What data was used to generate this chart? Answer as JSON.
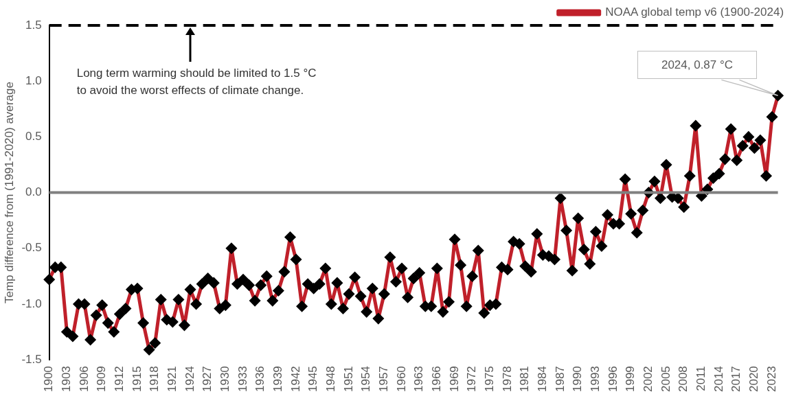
{
  "chart_data": {
    "type": "line",
    "ylabel": "Temp difference from (1991-2020) average",
    "categories": [
      "1900",
      null,
      null,
      "1903",
      null,
      null,
      "1906",
      null,
      null,
      "1909",
      null,
      null,
      "1912",
      null,
      null,
      "1915",
      null,
      null,
      "1918",
      null,
      null,
      "1921",
      null,
      null,
      "1924",
      null,
      null,
      "1927",
      null,
      null,
      "1930",
      null,
      null,
      "1933",
      null,
      null,
      "1936",
      null,
      null,
      "1939",
      null,
      null,
      "1942",
      null,
      null,
      "1945",
      null,
      null,
      "1948",
      null,
      null,
      "1951",
      null,
      null,
      "1954",
      null,
      null,
      "1957",
      null,
      null,
      "1960",
      null,
      null,
      "1963",
      null,
      null,
      "1966",
      null,
      null,
      "1969",
      null,
      null,
      "1972",
      null,
      null,
      "1975",
      null,
      null,
      "1978",
      null,
      null,
      "1981",
      null,
      null,
      "1984",
      null,
      null,
      "1987",
      null,
      null,
      "1990",
      null,
      null,
      "1993",
      null,
      null,
      "1996",
      null,
      null,
      "1999",
      null,
      null,
      "2002",
      null,
      null,
      "2005",
      null,
      null,
      "2008",
      null,
      null,
      "2011",
      null,
      null,
      "2014",
      null,
      null,
      "2017",
      null,
      null,
      "2020",
      null,
      null,
      "2023",
      null
    ],
    "series": [
      {
        "name": "NOAA global temp v6 (1900-2024)",
        "color": "#c0202a",
        "values": [
          -0.78,
          -0.67,
          -0.67,
          -1.25,
          -1.29,
          -1.0,
          -1.0,
          -1.32,
          -1.1,
          -1.01,
          -1.17,
          -1.25,
          -1.09,
          -1.04,
          -0.87,
          -0.86,
          -1.17,
          -1.41,
          -1.35,
          -0.96,
          -1.14,
          -1.16,
          -0.96,
          -1.19,
          -0.87,
          -1.0,
          -0.82,
          -0.77,
          -0.81,
          -1.04,
          -1.01,
          -0.5,
          -0.82,
          -0.78,
          -0.83,
          -0.97,
          -0.83,
          -0.75,
          -0.97,
          -0.88,
          -0.71,
          -0.4,
          -0.6,
          -1.02,
          -0.82,
          -0.86,
          -0.82,
          -0.68,
          -1.0,
          -0.81,
          -1.04,
          -0.91,
          -0.76,
          -0.93,
          -1.07,
          -0.86,
          -1.13,
          -0.91,
          -0.58,
          -0.8,
          -0.68,
          -0.94,
          -0.77,
          -0.72,
          -1.02,
          -1.02,
          -0.68,
          -1.07,
          -0.98,
          -0.42,
          -0.65,
          -1.02,
          -0.75,
          -0.52,
          -1.08,
          -1.01,
          -1.0,
          -0.67,
          -0.69,
          -0.44,
          -0.46,
          -0.66,
          -0.71,
          -0.37,
          -0.56,
          -0.57,
          -0.6,
          -0.05,
          -0.34,
          -0.7,
          -0.23,
          -0.51,
          -0.64,
          -0.35,
          -0.48,
          -0.2,
          -0.28,
          -0.28,
          0.12,
          -0.19,
          -0.36,
          -0.16,
          0.0,
          0.1,
          -0.05,
          0.25,
          -0.04,
          -0.05,
          -0.13,
          0.15,
          0.6,
          -0.03,
          0.03,
          0.13,
          0.17,
          0.3,
          0.57,
          0.29,
          0.42,
          0.5,
          0.4,
          0.47,
          0.15,
          0.68,
          0.87
        ]
      }
    ],
    "ylim": [
      -1.5,
      1.5
    ],
    "yticks": [
      -1.5,
      {
        "value": -1,
        "label": "-1.0"
      },
      -0.5,
      {
        "value": 0,
        "label": "0.0"
      },
      0.5,
      {
        "value": 1,
        "label": "1.0"
      },
      1.5
    ],
    "ref_lines": [
      {
        "axis": "y",
        "value": 1.5,
        "color": "#000000",
        "line_style": "dashed"
      },
      {
        "axis": "y",
        "value": 0,
        "color": "#808080"
      }
    ],
    "annotations": [
      "Long term warming should be limited to 1.5 °C\nto avoid the worst effects of climate change.",
      "2024, 0.87 °C"
    ],
    "legend": "top right",
    "marker": "diamond",
    "line_style": "solid",
    "grid": false
  }
}
